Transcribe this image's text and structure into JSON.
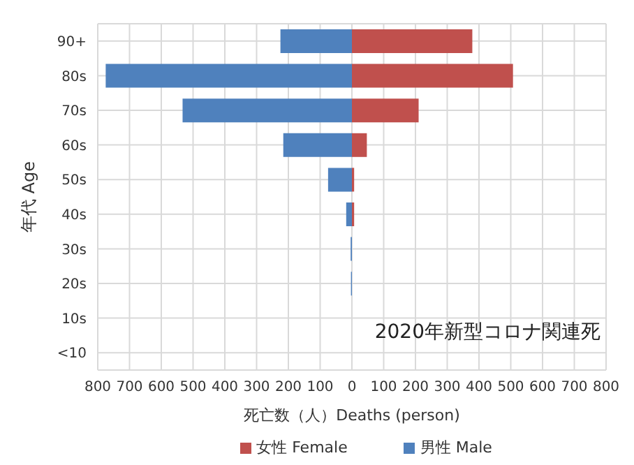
{
  "chart_data": {
    "type": "bar",
    "orientation": "horizontal",
    "stacked": true,
    "categories": [
      "90+",
      "80s",
      "70s",
      "60s",
      "50s",
      "40s",
      "30s",
      "20s",
      "10s",
      "<10"
    ],
    "series": [
      {
        "name": "男性 Male",
        "color": "#4f81bd",
        "values": [
          -225,
          -775,
          -533,
          -216,
          -75,
          -18,
          -4,
          -3,
          0,
          0
        ]
      },
      {
        "name": "女性 Female",
        "color": "#c0504d",
        "values": [
          379,
          507,
          210,
          47,
          7,
          7,
          0,
          0,
          0,
          0
        ]
      }
    ],
    "xlim": [
      -800,
      800
    ],
    "xticks": [
      {
        "value": -800,
        "label": "800"
      },
      {
        "value": -700,
        "label": "700"
      },
      {
        "value": -600,
        "label": "600"
      },
      {
        "value": -500,
        "label": "500"
      },
      {
        "value": -400,
        "label": "400"
      },
      {
        "value": -300,
        "label": "300"
      },
      {
        "value": -200,
        "label": "200"
      },
      {
        "value": -100,
        "label": "100"
      },
      0,
      100,
      200,
      300,
      400,
      500,
      600,
      700,
      800
    ],
    "xlabel": "死亡数（人）Deaths (person)",
    "ylabel": "年代 Age",
    "annotations": [
      "2020年新型コロナ関連死"
    ],
    "grid": true,
    "legend": "bottom"
  }
}
